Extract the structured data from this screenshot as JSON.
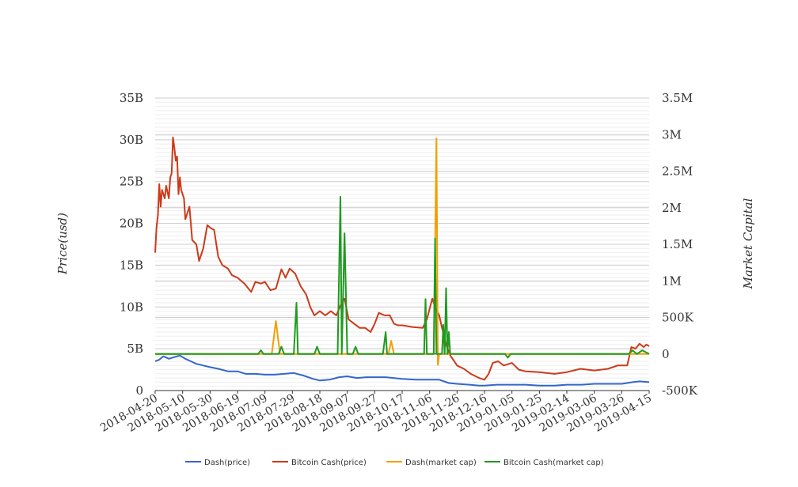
{
  "chart_data": {
    "type": "line",
    "title": "",
    "xlabel": "",
    "ylabel": "Price(usd)",
    "y2label": "Market Capital",
    "x_start": "2018-04-20",
    "x_end": "2019-04-15",
    "x_ticks": [
      "2018-04-20",
      "2018-05-10",
      "2018-05-30",
      "2018-06-19",
      "2018-07-09",
      "2018-07-29",
      "2018-08-18",
      "2018-09-07",
      "2018-09-27",
      "2018-10-17",
      "2018-11-06",
      "2018-11-26",
      "2018-12-16",
      "2019-01-05",
      "2019-01-25",
      "2019-02-14",
      "2019-03-06",
      "2019-03-26",
      "2019-04-15"
    ],
    "y_ticks": [
      "0",
      "5B",
      "10B",
      "15B",
      "20B",
      "25B",
      "30B",
      "35B"
    ],
    "y_ticks_values": [
      0,
      5,
      10,
      15,
      20,
      25,
      30,
      35
    ],
    "y2_ticks": [
      "-500K",
      "0",
      "500K",
      "1M",
      "1.5M",
      "2M",
      "2.5M",
      "3M",
      "3.5M"
    ],
    "y2_ticks_values": [
      -500,
      0,
      500,
      1000,
      1500,
      2000,
      2500,
      3000,
      3500
    ],
    "ylim": [
      0,
      35
    ],
    "y2lim": [
      -500,
      3500
    ],
    "y_unit": "billion USD",
    "y2_unit": "thousand",
    "grid": true,
    "legend_position": "bottom",
    "series": [
      {
        "name": "Dash(price)",
        "axis": "left",
        "color": "#3366cc",
        "points": [
          [
            "2018-04-20",
            3.5
          ],
          [
            "2018-04-23",
            3.7
          ],
          [
            "2018-04-26",
            4.1
          ],
          [
            "2018-04-30",
            3.8
          ],
          [
            "2018-05-04",
            4.0
          ],
          [
            "2018-05-08",
            4.2
          ],
          [
            "2018-05-12",
            3.8
          ],
          [
            "2018-05-16",
            3.5
          ],
          [
            "2018-05-20",
            3.2
          ],
          [
            "2018-05-25",
            3.0
          ],
          [
            "2018-05-30",
            2.8
          ],
          [
            "2018-06-05",
            2.6
          ],
          [
            "2018-06-12",
            2.3
          ],
          [
            "2018-06-19",
            2.3
          ],
          [
            "2018-06-25",
            2.0
          ],
          [
            "2018-07-02",
            2.0
          ],
          [
            "2018-07-09",
            1.9
          ],
          [
            "2018-07-16",
            1.9
          ],
          [
            "2018-07-23",
            2.0
          ],
          [
            "2018-07-30",
            2.1
          ],
          [
            "2018-08-06",
            1.8
          ],
          [
            "2018-08-13",
            1.4
          ],
          [
            "2018-08-18",
            1.2
          ],
          [
            "2018-08-25",
            1.3
          ],
          [
            "2018-09-01",
            1.6
          ],
          [
            "2018-09-07",
            1.7
          ],
          [
            "2018-09-14",
            1.5
          ],
          [
            "2018-09-21",
            1.6
          ],
          [
            "2018-09-27",
            1.6
          ],
          [
            "2018-10-05",
            1.6
          ],
          [
            "2018-10-17",
            1.4
          ],
          [
            "2018-10-27",
            1.3
          ],
          [
            "2018-11-06",
            1.3
          ],
          [
            "2018-11-13",
            1.3
          ],
          [
            "2018-11-20",
            0.9
          ],
          [
            "2018-11-26",
            0.8
          ],
          [
            "2018-12-05",
            0.7
          ],
          [
            "2018-12-12",
            0.6
          ],
          [
            "2018-12-16",
            0.6
          ],
          [
            "2018-12-25",
            0.7
          ],
          [
            "2019-01-05",
            0.7
          ],
          [
            "2019-01-15",
            0.7
          ],
          [
            "2019-01-25",
            0.6
          ],
          [
            "2019-02-05",
            0.6
          ],
          [
            "2019-02-14",
            0.7
          ],
          [
            "2019-02-25",
            0.7
          ],
          [
            "2019-03-06",
            0.8
          ],
          [
            "2019-03-16",
            0.8
          ],
          [
            "2019-03-26",
            0.8
          ],
          [
            "2019-04-03",
            1.0
          ],
          [
            "2019-04-08",
            1.1
          ],
          [
            "2019-04-15",
            1.0
          ]
        ]
      },
      {
        "name": "Bitcoin Cash(price)",
        "axis": "left",
        "color": "#cc3a1a",
        "points": [
          [
            "2018-04-20",
            16.5
          ],
          [
            "2018-04-21",
            19.5
          ],
          [
            "2018-04-22",
            21.0
          ],
          [
            "2018-04-23",
            24.7
          ],
          [
            "2018-04-24",
            22.0
          ],
          [
            "2018-04-25",
            24.0
          ],
          [
            "2018-04-27",
            23.0
          ],
          [
            "2018-04-28",
            24.5
          ],
          [
            "2018-04-30",
            23.0
          ],
          [
            "2018-05-01",
            25.5
          ],
          [
            "2018-05-02",
            26.0
          ],
          [
            "2018-05-03",
            30.3
          ],
          [
            "2018-05-04",
            29.0
          ],
          [
            "2018-05-05",
            27.5
          ],
          [
            "2018-05-06",
            28.0
          ],
          [
            "2018-05-07",
            23.5
          ],
          [
            "2018-05-08",
            25.5
          ],
          [
            "2018-05-09",
            24.0
          ],
          [
            "2018-05-11",
            23.0
          ],
          [
            "2018-05-12",
            20.5
          ],
          [
            "2018-05-15",
            22.0
          ],
          [
            "2018-05-17",
            18.0
          ],
          [
            "2018-05-20",
            17.5
          ],
          [
            "2018-05-22",
            15.5
          ],
          [
            "2018-05-25",
            17.0
          ],
          [
            "2018-05-28",
            19.8
          ],
          [
            "2018-05-30",
            19.5
          ],
          [
            "2018-06-02",
            19.2
          ],
          [
            "2018-06-05",
            16.0
          ],
          [
            "2018-06-08",
            15.0
          ],
          [
            "2018-06-12",
            14.6
          ],
          [
            "2018-06-15",
            13.8
          ],
          [
            "2018-06-19",
            13.5
          ],
          [
            "2018-06-24",
            12.8
          ],
          [
            "2018-06-29",
            11.8
          ],
          [
            "2018-07-02",
            13.0
          ],
          [
            "2018-07-06",
            12.8
          ],
          [
            "2018-07-09",
            13.0
          ],
          [
            "2018-07-13",
            12.0
          ],
          [
            "2018-07-17",
            12.2
          ],
          [
            "2018-07-21",
            14.5
          ],
          [
            "2018-07-24",
            13.5
          ],
          [
            "2018-07-27",
            14.6
          ],
          [
            "2018-07-31",
            14.0
          ],
          [
            "2018-08-04",
            12.5
          ],
          [
            "2018-08-08",
            11.5
          ],
          [
            "2018-08-11",
            10.0
          ],
          [
            "2018-08-14",
            9.0
          ],
          [
            "2018-08-18",
            9.5
          ],
          [
            "2018-08-22",
            9.0
          ],
          [
            "2018-08-26",
            9.5
          ],
          [
            "2018-08-30",
            9.0
          ],
          [
            "2018-09-03",
            10.5
          ],
          [
            "2018-09-05",
            11.0
          ],
          [
            "2018-09-08",
            8.5
          ],
          [
            "2018-09-12",
            8.0
          ],
          [
            "2018-09-16",
            7.5
          ],
          [
            "2018-09-20",
            7.5
          ],
          [
            "2018-09-24",
            7.0
          ],
          [
            "2018-09-27",
            8.0
          ],
          [
            "2018-09-30",
            9.3
          ],
          [
            "2018-10-04",
            9.0
          ],
          [
            "2018-10-08",
            9.0
          ],
          [
            "2018-10-11",
            8.0
          ],
          [
            "2018-10-14",
            7.8
          ],
          [
            "2018-10-17",
            7.8
          ],
          [
            "2018-10-25",
            7.6
          ],
          [
            "2018-11-01",
            7.5
          ],
          [
            "2018-11-04",
            8.5
          ],
          [
            "2018-11-06",
            9.8
          ],
          [
            "2018-11-08",
            11.0
          ],
          [
            "2018-11-10",
            10.0
          ],
          [
            "2018-11-13",
            9.0
          ],
          [
            "2018-11-15",
            7.5
          ],
          [
            "2018-11-18",
            5.5
          ],
          [
            "2018-11-21",
            4.2
          ],
          [
            "2018-11-24",
            3.5
          ],
          [
            "2018-11-26",
            3.0
          ],
          [
            "2018-12-01",
            2.6
          ],
          [
            "2018-12-06",
            2.0
          ],
          [
            "2018-12-12",
            1.5
          ],
          [
            "2018-12-16",
            1.3
          ],
          [
            "2018-12-19",
            2.0
          ],
          [
            "2018-12-22",
            3.3
          ],
          [
            "2018-12-26",
            3.5
          ],
          [
            "2018-12-30",
            3.0
          ],
          [
            "2019-01-05",
            3.3
          ],
          [
            "2019-01-10",
            2.5
          ],
          [
            "2019-01-15",
            2.3
          ],
          [
            "2019-01-25",
            2.2
          ],
          [
            "2019-02-05",
            2.0
          ],
          [
            "2019-02-14",
            2.2
          ],
          [
            "2019-02-24",
            2.6
          ],
          [
            "2019-03-06",
            2.4
          ],
          [
            "2019-03-16",
            2.6
          ],
          [
            "2019-03-23",
            3.0
          ],
          [
            "2019-03-30",
            3.0
          ],
          [
            "2019-04-02",
            5.2
          ],
          [
            "2019-04-05",
            5.0
          ],
          [
            "2019-04-08",
            5.6
          ],
          [
            "2019-04-11",
            5.2
          ],
          [
            "2019-04-13",
            5.5
          ],
          [
            "2019-04-15",
            5.3
          ]
        ]
      },
      {
        "name": "Dash(market cap)",
        "axis": "right",
        "color": "#f0a000",
        "points": [
          [
            "2018-04-20",
            0
          ],
          [
            "2018-07-14",
            0
          ],
          [
            "2018-07-17",
            450
          ],
          [
            "2018-07-20",
            0
          ],
          [
            "2018-10-07",
            0
          ],
          [
            "2018-10-09",
            180
          ],
          [
            "2018-10-11",
            0
          ],
          [
            "2018-11-09",
            0
          ],
          [
            "2018-11-11",
            2950
          ],
          [
            "2018-11-12",
            -150
          ],
          [
            "2018-11-13",
            0
          ],
          [
            "2019-04-15",
            0
          ]
        ]
      },
      {
        "name": "Bitcoin Cash(market cap)",
        "axis": "right",
        "color": "#1f9a1f",
        "points": [
          [
            "2018-04-20",
            0
          ],
          [
            "2018-07-04",
            0
          ],
          [
            "2018-07-06",
            50
          ],
          [
            "2018-07-08",
            0
          ],
          [
            "2018-07-19",
            0
          ],
          [
            "2018-07-21",
            100
          ],
          [
            "2018-07-23",
            0
          ],
          [
            "2018-07-30",
            0
          ],
          [
            "2018-08-01",
            700
          ],
          [
            "2018-08-02",
            0
          ],
          [
            "2018-08-14",
            0
          ],
          [
            "2018-08-16",
            100
          ],
          [
            "2018-08-18",
            0
          ],
          [
            "2018-08-31",
            0
          ],
          [
            "2018-09-02",
            2150
          ],
          [
            "2018-09-03",
            0
          ],
          [
            "2018-09-05",
            1650
          ],
          [
            "2018-09-07",
            0
          ],
          [
            "2018-09-11",
            0
          ],
          [
            "2018-09-13",
            100
          ],
          [
            "2018-09-15",
            0
          ],
          [
            "2018-10-03",
            0
          ],
          [
            "2018-10-05",
            300
          ],
          [
            "2018-10-06",
            0
          ],
          [
            "2018-11-02",
            0
          ],
          [
            "2018-11-03",
            750
          ],
          [
            "2018-11-04",
            0
          ],
          [
            "2018-11-09",
            0
          ],
          [
            "2018-11-10",
            1580
          ],
          [
            "2018-11-11",
            0
          ],
          [
            "2018-11-15",
            0
          ],
          [
            "2018-11-16",
            400
          ],
          [
            "2018-11-17",
            0
          ],
          [
            "2018-11-18",
            900
          ],
          [
            "2018-11-19",
            0
          ],
          [
            "2018-11-20",
            300
          ],
          [
            "2018-11-21",
            0
          ],
          [
            "2018-12-31",
            0
          ],
          [
            "2019-01-02",
            -50
          ],
          [
            "2019-01-04",
            0
          ],
          [
            "2019-03-31",
            0
          ],
          [
            "2019-04-03",
            50
          ],
          [
            "2019-04-06",
            0
          ],
          [
            "2019-04-10",
            50
          ],
          [
            "2019-04-15",
            0
          ]
        ]
      }
    ]
  }
}
